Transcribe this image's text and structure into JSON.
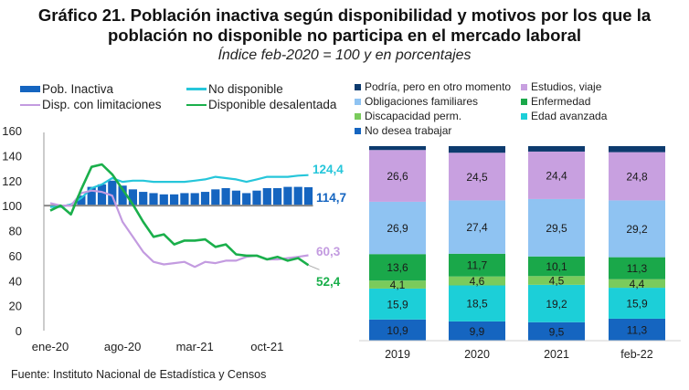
{
  "header": {
    "title_bold": "Gráfico 21.",
    "title_line1_rest": " Población inactiva según disponibilidad y motivos por los que la",
    "title_line2": "población no disponible no participa en el mercado laboral",
    "subtitle": "Índice feb-2020 = 100 y en porcentajes"
  },
  "source": "Fuente: Instituto Nacional de Estadística y Censos",
  "colors": {
    "pob_inactiva": "#1565c0",
    "no_disponible": "#26c6da",
    "disp_limitaciones": "#c39be0",
    "disponible_desalentada": "#1aaf4b",
    "podria_otro_momento": "#0d3b6e",
    "estudios_viaje": "#c8a0e0",
    "obligaciones_familiares": "#8fc3f2",
    "enfermedad": "#1aa84a",
    "discapacidad_perm": "#7acb5c",
    "edad_avanzada": "#1ccfd8",
    "no_desea_trabajar": "#1565c0"
  },
  "chart_data": [
    {
      "type": "bar+line",
      "title": "Índice feb-2020 = 100",
      "xlabel": "",
      "ylabel": "",
      "ylim": [
        0,
        160
      ],
      "yticks": [
        0,
        20,
        40,
        60,
        80,
        100,
        120,
        140,
        160
      ],
      "xtick_labels": [
        "ene-20",
        "ago-20",
        "mar-21",
        "oct-21"
      ],
      "x": [
        "ene-20",
        "feb-20",
        "mar-20",
        "abr-20",
        "may-20",
        "jun-20",
        "jul-20",
        "ago-20",
        "sep-20",
        "oct-20",
        "nov-20",
        "dic-20",
        "ene-21",
        "feb-21",
        "mar-21",
        "abr-21",
        "may-21",
        "jun-21",
        "jul-21",
        "ago-21",
        "sep-21",
        "oct-21",
        "nov-21",
        "dic-21",
        "ene-22",
        "feb-22"
      ],
      "legend_position": "top",
      "grid": false,
      "series": [
        {
          "name": "Pob. Inactiva",
          "kind": "bar",
          "values": [
            100,
            100,
            101,
            108,
            115,
            117,
            120,
            116,
            113,
            111,
            110,
            109,
            109,
            110,
            110,
            111,
            113,
            114,
            112,
            110,
            112,
            114,
            114,
            115,
            115,
            114.7
          ]
        },
        {
          "name": "No disponible",
          "kind": "line",
          "values": [
            99,
            99,
            101,
            106,
            114,
            117,
            122,
            119,
            120,
            120,
            119,
            119,
            119,
            119,
            120,
            121,
            123,
            122,
            121,
            119,
            121,
            123,
            123,
            123,
            124,
            124.4
          ]
        },
        {
          "name": "Disp. con limitaciones",
          "kind": "line",
          "values": [
            102,
            100,
            100,
            110,
            112,
            111,
            108,
            87,
            75,
            63,
            55,
            53,
            54,
            55,
            51,
            55,
            54,
            56,
            56,
            59,
            60,
            57,
            57,
            58,
            59,
            60.3
          ]
        },
        {
          "name": "Disponible desalentada",
          "kind": "line",
          "values": [
            96,
            100,
            93,
            113,
            131,
            133,
            125,
            113,
            101,
            87,
            75,
            77,
            69,
            72,
            72,
            73,
            67,
            69,
            61,
            60,
            60,
            57,
            59,
            56,
            58,
            52.4
          ]
        }
      ],
      "end_labels": {
        "no_disponible": "124,4",
        "pob_inactiva": "114,7",
        "disp_limitaciones": "60,3",
        "disponible_desalentada": "52,4"
      },
      "legend": [
        "Pob. Inactiva",
        "No disponible",
        "Disp. con limitaciones",
        "Disponible desalentada"
      ]
    },
    {
      "type": "bar",
      "stacked": true,
      "title": "en porcentajes",
      "categories": [
        "2019",
        "2020",
        "2021",
        "feb-22"
      ],
      "ylim": [
        0,
        100
      ],
      "legend_position": "top",
      "series": [
        {
          "name": "No desea trabajar",
          "key": "no_desea_trabajar",
          "values": [
            10.9,
            9.9,
            9.5,
            11.3
          ],
          "labels": [
            "10,9",
            "9,9",
            "9,5",
            "11,3"
          ]
        },
        {
          "name": "Edad avanzada",
          "key": "edad_avanzada",
          "values": [
            15.9,
            18.5,
            19.2,
            15.9
          ],
          "labels": [
            "15,9",
            "18,5",
            "19,2",
            "15,9"
          ]
        },
        {
          "name": "Discapacidad perm.",
          "key": "discapacidad_perm",
          "values": [
            4.1,
            4.6,
            4.5,
            4.4
          ],
          "labels": [
            "4,1",
            "4,6",
            "4,5",
            "4,4"
          ]
        },
        {
          "name": "Enfermedad",
          "key": "enfermedad",
          "values": [
            13.6,
            11.7,
            10.1,
            11.3
          ],
          "labels": [
            "13,6",
            "11,7",
            "10,1",
            "11,3"
          ]
        },
        {
          "name": "Obligaciones familiares",
          "key": "obligaciones_familiares",
          "values": [
            26.9,
            27.4,
            29.5,
            29.2
          ],
          "labels": [
            "26,9",
            "27,4",
            "29,5",
            "29,2"
          ]
        },
        {
          "name": "Estudios, viaje",
          "key": "estudios_viaje",
          "values": [
            26.6,
            24.5,
            24.4,
            24.8
          ],
          "labels": [
            "26,6",
            "24,5",
            "24,4",
            "24,8"
          ]
        },
        {
          "name": "Podría, pero en otro momento",
          "key": "podria_otro_momento",
          "values": [
            2.0,
            3.4,
            2.8,
            3.1
          ],
          "labels": [
            "",
            "",
            "",
            ""
          ]
        }
      ],
      "legend": [
        "Podría, pero en otro momento",
        "Estudios, viaje",
        "Obligaciones familiares",
        "Enfermedad",
        "Discapacidad perm.",
        "Edad avanzada",
        "No desea trabajar"
      ]
    }
  ]
}
